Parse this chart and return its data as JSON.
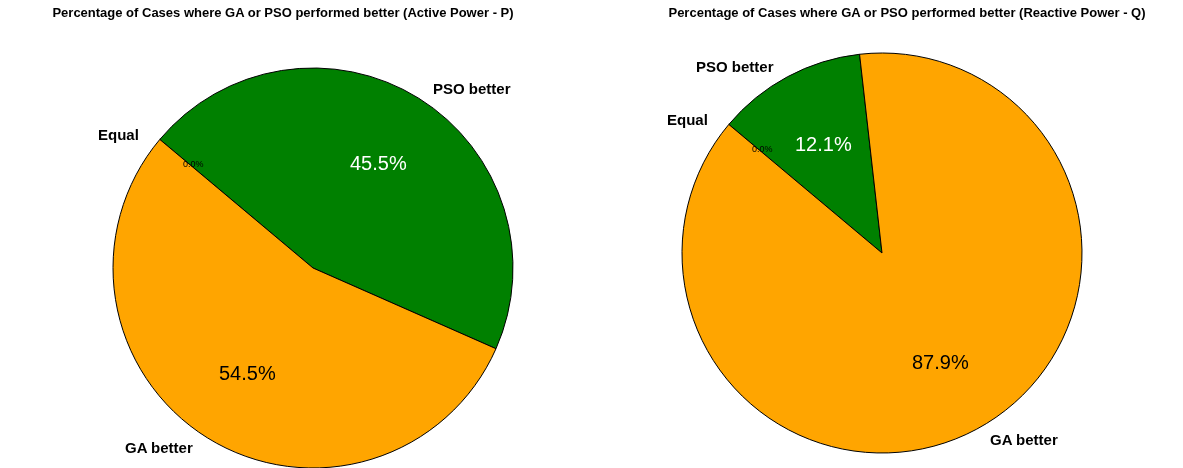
{
  "chart_data": [
    {
      "type": "pie",
      "title": "Percentage of Cases where GA or PSO performed better (Active Power - P)",
      "categories": [
        "GA better",
        "PSO better",
        "Equal"
      ],
      "values": [
        54.5,
        45.5,
        0
      ],
      "colors": [
        "#ffa500",
        "#008000",
        "#1f77b4"
      ],
      "value_labels": [
        "54.5%",
        "45.5%",
        "0.0%"
      ]
    },
    {
      "type": "pie",
      "title": "Percentage of Cases where GA or PSO performed better (Reactive Power - Q)",
      "categories": [
        "GA better",
        "PSO better",
        "Equal"
      ],
      "values": [
        87.9,
        12.1,
        0
      ],
      "colors": [
        "#ffa500",
        "#008000",
        "#1f77b4"
      ],
      "value_labels": [
        "87.9%",
        "12.1%",
        "0.0%"
      ]
    }
  ]
}
